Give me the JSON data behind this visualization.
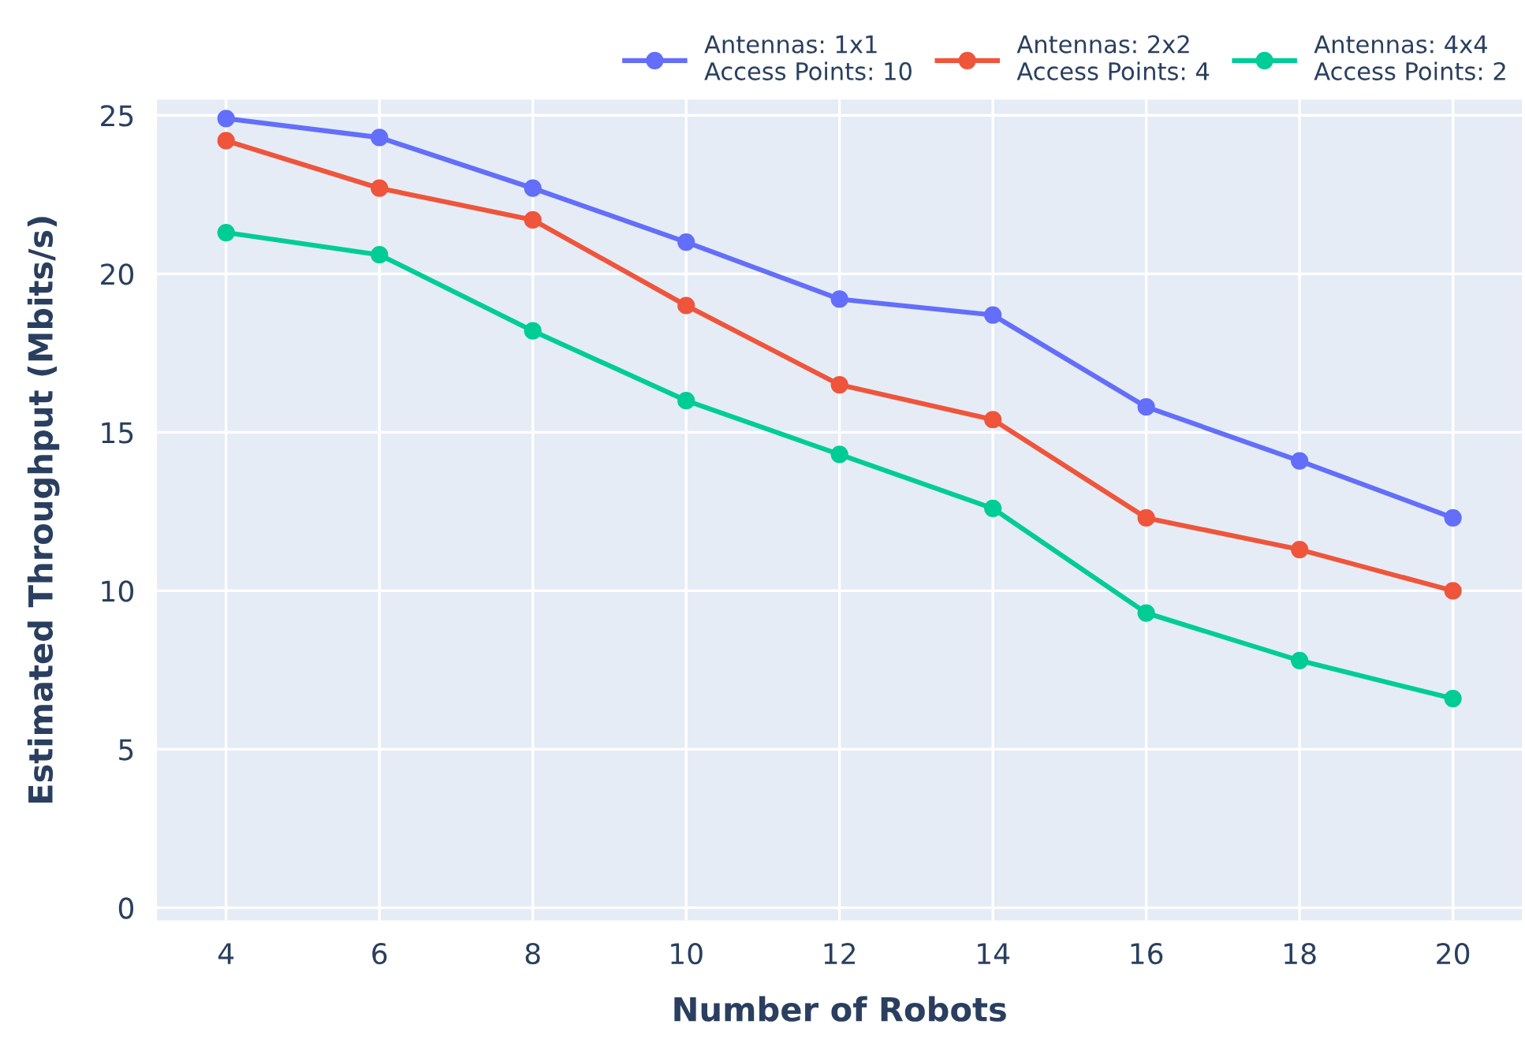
{
  "chart_data": {
    "type": "line",
    "xlabel": "Number of Robots",
    "ylabel": "Estimated Throughput (Mbits/s)",
    "x": [
      4,
      6,
      8,
      10,
      12,
      14,
      16,
      18,
      20
    ],
    "series": [
      {
        "name": "Antennas: 1x1\nAccess Points: 10",
        "color": "#636efa",
        "values": [
          24.9,
          24.3,
          22.7,
          21.0,
          19.2,
          18.7,
          15.8,
          14.1,
          12.3
        ]
      },
      {
        "name": "Antennas: 2x2\nAccess Points: 4",
        "color": "#ef553b",
        "values": [
          24.2,
          22.7,
          21.7,
          19.0,
          16.5,
          15.4,
          12.3,
          11.3,
          10.0
        ]
      },
      {
        "name": "Antennas: 4x4\nAccess Points: 2",
        "color": "#00cc96",
        "values": [
          21.3,
          20.6,
          18.2,
          16.0,
          14.3,
          12.6,
          9.3,
          7.8,
          6.6
        ]
      }
    ],
    "xlim": [
      3.1,
      20.9
    ],
    "xticks": [
      4,
      6,
      8,
      10,
      12,
      14,
      16,
      18,
      20
    ],
    "ylim": [
      -0.4,
      25.5
    ],
    "yticks": [
      0,
      5,
      10,
      15,
      20,
      25
    ],
    "grid": true,
    "legend": "top right",
    "marker": "circle",
    "line_style": "solid"
  }
}
